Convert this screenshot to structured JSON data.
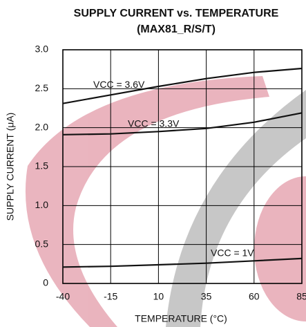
{
  "chart_data": {
    "type": "line",
    "title": "SUPPLY CURRENT vs. TEMPERATURE",
    "subtitle": "(MAX81_R/S/T)",
    "x_label": "TEMPERATURE (°C)",
    "y_label": "SUPPLY CURRENT (μA)",
    "x": [
      -40,
      -15,
      10,
      35,
      60,
      85
    ],
    "series": [
      {
        "name": "VCC = 3.6V",
        "color": "#111111",
        "values": [
          2.31,
          2.42,
          2.53,
          2.63,
          2.71,
          2.76
        ]
      },
      {
        "name": "VCC = 3.3V",
        "color": "#111111",
        "values": [
          1.91,
          1.92,
          1.95,
          1.99,
          2.07,
          2.19
        ]
      },
      {
        "name": "VCC = 1V",
        "color": "#111111",
        "values": [
          0.21,
          0.22,
          0.24,
          0.26,
          0.29,
          0.32
        ]
      }
    ],
    "xlim": [
      -40,
      85
    ],
    "xticks": [
      -40,
      -15,
      10,
      35,
      60,
      85
    ],
    "ylim": [
      0,
      3
    ],
    "yticks": [
      0,
      0.5,
      {
        "value": 1,
        "label": "1.0"
      },
      1.5,
      {
        "value": 2,
        "label": "2.0"
      },
      2.5,
      {
        "value": 3,
        "label": "3.0"
      }
    ],
    "grid": true
  }
}
